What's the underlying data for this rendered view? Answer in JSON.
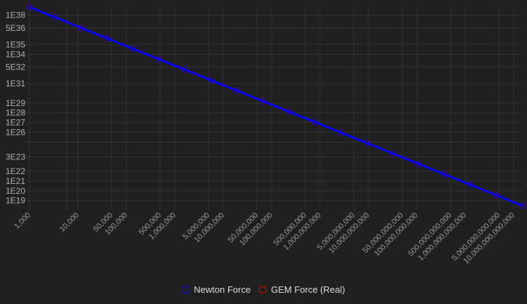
{
  "chart_data": {
    "type": "line",
    "title": "",
    "xlabel": "",
    "ylabel": "",
    "x_scale": "log",
    "y_scale": "log",
    "grid": true,
    "legend_position": "bottom",
    "xlim": [
      1000,
      15500000000000
    ],
    "ylim": [
      3e+18,
      7e+38
    ],
    "x_ticks": [
      {
        "value": 1000,
        "label": "1,000"
      },
      {
        "value": 10000,
        "label": "10,000"
      },
      {
        "value": 50000,
        "label": "50,000"
      },
      {
        "value": 100000,
        "label": "100,000"
      },
      {
        "value": 500000,
        "label": "500,000"
      },
      {
        "value": 1000000,
        "label": "1,000,000"
      },
      {
        "value": 5000000,
        "label": "5,000,000"
      },
      {
        "value": 10000000,
        "label": "10,000,000"
      },
      {
        "value": 50000000,
        "label": "50,000,000"
      },
      {
        "value": 100000000,
        "label": "100,000,000"
      },
      {
        "value": 500000000,
        "label": "500,000,000"
      },
      {
        "value": 1000000000,
        "label": "1,000,000,000"
      },
      {
        "value": 5000000000,
        "label": "5,000,000,000"
      },
      {
        "value": 10000000000,
        "label": "10,000,000,000"
      },
      {
        "value": 50000000000,
        "label": "50,000,000,000"
      },
      {
        "value": 100000000000,
        "label": "100,000,000,000"
      },
      {
        "value": 500000000000,
        "label": "500,000,000,000"
      },
      {
        "value": 1000000000000,
        "label": "1,000,000,000,000"
      },
      {
        "value": 5000000000000,
        "label": "5,000,000,000,000"
      },
      {
        "value": 10000000000000,
        "label": "10,000,000,000,000"
      }
    ],
    "y_ticks": [
      {
        "value": 1e+38,
        "label": "1E38"
      },
      {
        "value": 5e+36,
        "label": "5E36"
      },
      {
        "value": 1e+35,
        "label": "1E35"
      },
      {
        "value": 1e+34,
        "label": "1E34"
      },
      {
        "value": 5e+32,
        "label": "5E32"
      },
      {
        "value": 1e+31,
        "label": "1E31"
      },
      {
        "value": 1e+29,
        "label": "1E29"
      },
      {
        "value": 1e+28,
        "label": "1E28"
      },
      {
        "value": 1e+27,
        "label": "1E27"
      },
      {
        "value": 1e+26,
        "label": "1E26"
      },
      {
        "value": 3e+23,
        "label": "3E23"
      },
      {
        "value": 1e+22,
        "label": "1E22"
      },
      {
        "value": 1e+21,
        "label": "1E21"
      },
      {
        "value": 1e+20,
        "label": "1E20"
      },
      {
        "value": 1e+19,
        "label": "1E19"
      }
    ],
    "x": [
      1000,
      3440,
      11800,
      40600,
      140000,
      480000,
      1650000,
      5680000,
      19500000,
      67100000,
      231000000,
      794000000,
      2730000000,
      9390000000,
      32300000000,
      111000000000,
      382000000000,
      1310000000000,
      4510000000000,
      15500000000000
    ],
    "series": [
      {
        "name": "GEM Force (Real)",
        "color": "#e00000",
        "values": [
          7e+38,
          5.92e+37,
          5.03e+36,
          4.25e+35,
          3.57e+34,
          3.04e+33,
          2.57e+32,
          2.17e+31,
          1.84e+30,
          1.56e+29,
          1.31e+28,
          1.11e+27,
          9.4e+25,
          7.94e+24,
          6.71e+23,
          5.68e+22,
          4.8e+21,
          4.08e+20,
          3.44e+19,
          2.92e+18
        ]
      },
      {
        "name": "Newton Force",
        "color": "#0000ff",
        "values": [
          7e+38,
          5.92e+37,
          5.03e+36,
          4.25e+35,
          3.57e+34,
          3.04e+33,
          2.57e+32,
          2.17e+31,
          1.84e+30,
          1.56e+29,
          1.31e+28,
          1.11e+27,
          9.4e+25,
          7.94e+24,
          6.71e+23,
          5.68e+22,
          4.8e+21,
          4.08e+20,
          3.44e+19,
          2.92e+18
        ]
      }
    ]
  },
  "legend": {
    "items": [
      {
        "label": "Newton Force",
        "color": "#0000ff"
      },
      {
        "label": "GEM Force (Real)",
        "color": "#e00000"
      }
    ]
  }
}
